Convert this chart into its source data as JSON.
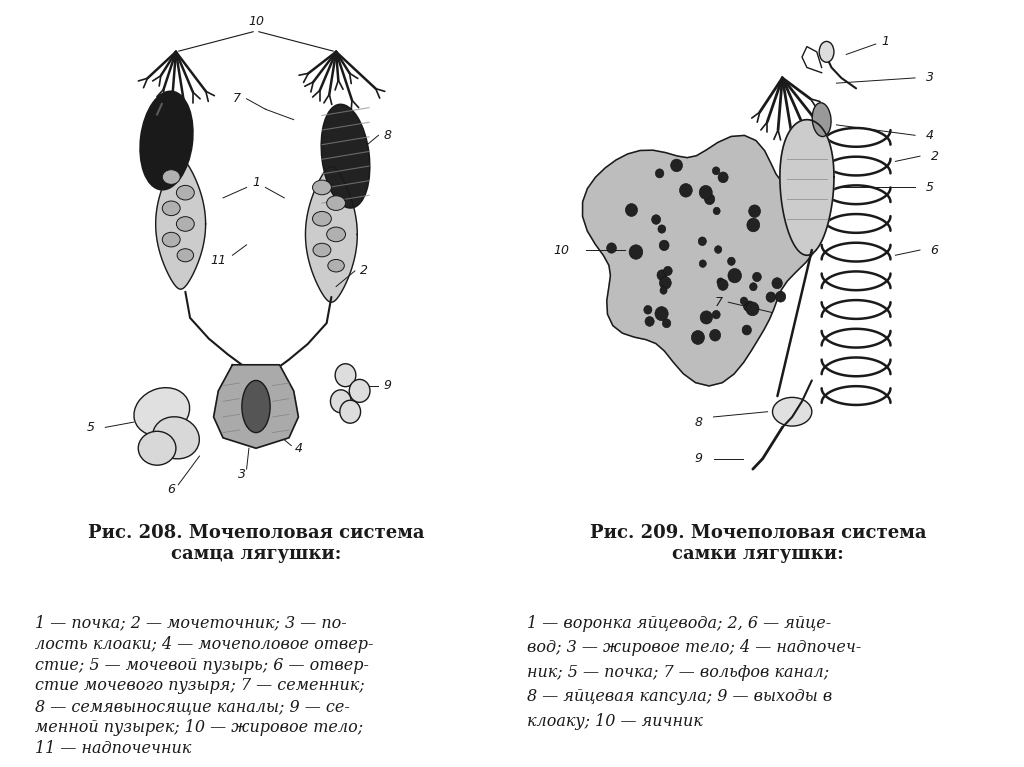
{
  "background_color": "#ffffff",
  "left_panel": {
    "caption_title": "Рис. 208. Мочеполовая система\nсамца лягушки:",
    "caption_body_line1": "1 — почка; 2 — мочеточник; 3 — по-",
    "caption_body_line2": "лость клоаки; 4 — мочеполовое отвер-",
    "caption_body_line3": "стие; 5 — мочевой пузырь; 6 — отвер-",
    "caption_body_line4": "стие мочевого пузыря; 7 — семенник;",
    "caption_body_line5": "8 — семявыносящие каналы; 9 — се-",
    "caption_body_line6": "менной пузырек; 10 — жировое тело;",
    "caption_body_line7": "11 — надпочечник"
  },
  "right_panel": {
    "caption_title": "Рис. 209. Мочеполовая система\nсамки лягушки:",
    "caption_body_line1": "1 — воронка яйцевода; 2, 6 — яйце-",
    "caption_body_line2": "вод; 3 — жировое тело; 4 — надпочеч-",
    "caption_body_line3": "ник; 5 — почка; 7 — вольфов канал;",
    "caption_body_line4": "8 — яйцевая капсула; 9 — выходы в",
    "caption_body_line5": "клоаку; 10 — яичник"
  },
  "caption_title_fontsize": 13,
  "caption_body_fontsize": 11.5,
  "text_color": "#1a1a1a"
}
